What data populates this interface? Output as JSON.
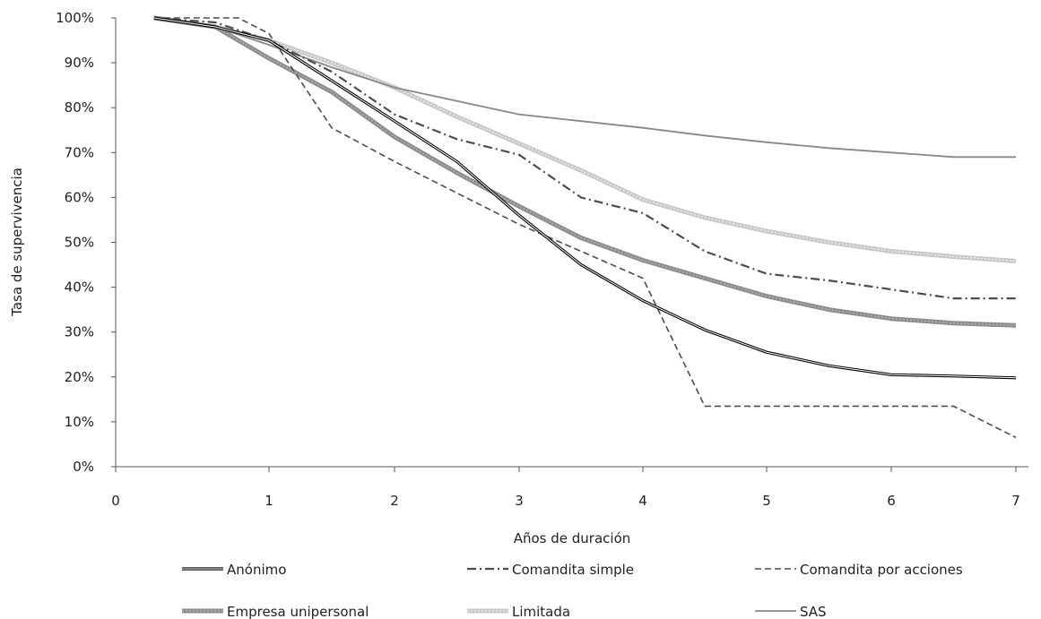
{
  "chart_data": {
    "type": "line",
    "title": "",
    "xlabel": "Años de duración",
    "ylabel": "Tasa de supervivencia",
    "xlim": [
      0,
      7
    ],
    "ylim": [
      0,
      100
    ],
    "x_ticks": [
      "0",
      "1",
      "2",
      "3",
      "4",
      "5",
      "6",
      "7"
    ],
    "y_ticks": [
      "0%",
      "10%",
      "20%",
      "30%",
      "40%",
      "50%",
      "60%",
      "70%",
      "80%",
      "90%",
      "100%"
    ],
    "grid": false,
    "legend_position": "bottom",
    "series": [
      {
        "name": "Anónimo",
        "style": "double-black",
        "color": "#000000",
        "points": [
          [
            0.25,
            100
          ],
          [
            0.65,
            98
          ],
          [
            1.0,
            95
          ],
          [
            1.5,
            86
          ],
          [
            2.0,
            77
          ],
          [
            2.5,
            68
          ],
          [
            3.0,
            56
          ],
          [
            3.5,
            45
          ],
          [
            4.0,
            37
          ],
          [
            4.5,
            30.5
          ],
          [
            5.0,
            25.5
          ],
          [
            5.5,
            22.5
          ],
          [
            6.0,
            20.5
          ],
          [
            6.5,
            20.2
          ],
          [
            7.0,
            19.8
          ]
        ]
      },
      {
        "name": "Comandita simple",
        "style": "dashdot",
        "color": "#4d4d4d",
        "points": [
          [
            0.25,
            100
          ],
          [
            0.65,
            99
          ],
          [
            1.0,
            95
          ],
          [
            1.5,
            88
          ],
          [
            2.0,
            78.5
          ],
          [
            2.5,
            73
          ],
          [
            3.0,
            69.5
          ],
          [
            3.5,
            60
          ],
          [
            4.0,
            56.5
          ],
          [
            4.5,
            48
          ],
          [
            5.0,
            43
          ],
          [
            5.5,
            41.5
          ],
          [
            6.0,
            39.5
          ],
          [
            6.5,
            37.5
          ],
          [
            7.0,
            37.5
          ]
        ]
      },
      {
        "name": "Comandita por acciones",
        "style": "dashed",
        "color": "#4d4d4d",
        "points": [
          [
            0.25,
            100
          ],
          [
            0.8,
            100
          ],
          [
            1.0,
            96.5
          ],
          [
            1.5,
            75.5
          ],
          [
            2.0,
            68
          ],
          [
            2.5,
            61
          ],
          [
            3.0,
            54
          ],
          [
            3.5,
            48
          ],
          [
            4.0,
            42
          ],
          [
            4.5,
            13.5
          ],
          [
            6.5,
            13.5
          ],
          [
            7.0,
            6.5
          ]
        ]
      },
      {
        "name": "Empresa unipersonal",
        "style": "thick-gray",
        "color": "#8c8c8c",
        "points": [
          [
            0.25,
            100
          ],
          [
            0.65,
            98
          ],
          [
            1.0,
            91
          ],
          [
            1.5,
            83.5
          ],
          [
            2.0,
            73.5
          ],
          [
            2.5,
            65.5
          ],
          [
            3.0,
            58
          ],
          [
            3.5,
            51
          ],
          [
            4.0,
            46
          ],
          [
            4.5,
            42
          ],
          [
            5.0,
            38
          ],
          [
            5.5,
            35
          ],
          [
            6.0,
            33
          ],
          [
            6.5,
            32
          ],
          [
            7.0,
            31.5
          ]
        ]
      },
      {
        "name": "Limitada",
        "style": "thick-light",
        "color": "#c8c8c8",
        "points": [
          [
            0.25,
            100
          ],
          [
            0.65,
            98
          ],
          [
            1.0,
            95
          ],
          [
            1.5,
            90
          ],
          [
            2.0,
            84.5
          ],
          [
            2.5,
            78
          ],
          [
            3.0,
            72
          ],
          [
            3.5,
            66
          ],
          [
            4.0,
            59.5
          ],
          [
            4.5,
            55.5
          ],
          [
            5.0,
            52.5
          ],
          [
            5.5,
            50
          ],
          [
            6.0,
            48
          ],
          [
            6.5,
            46.8
          ],
          [
            7.0,
            45.8
          ]
        ]
      },
      {
        "name": "SAS",
        "style": "solid-gray",
        "color": "#888888",
        "points": [
          [
            0.25,
            100
          ],
          [
            0.65,
            98
          ],
          [
            1.0,
            94
          ],
          [
            1.5,
            89
          ],
          [
            2.0,
            84.5
          ],
          [
            2.5,
            81.5
          ],
          [
            3.0,
            78.5
          ],
          [
            3.5,
            77
          ],
          [
            4.0,
            75.5
          ],
          [
            4.5,
            73.8
          ],
          [
            5.0,
            72.3
          ],
          [
            5.5,
            71
          ],
          [
            6.0,
            70
          ],
          [
            6.5,
            69
          ],
          [
            7.0,
            69
          ]
        ]
      }
    ]
  }
}
